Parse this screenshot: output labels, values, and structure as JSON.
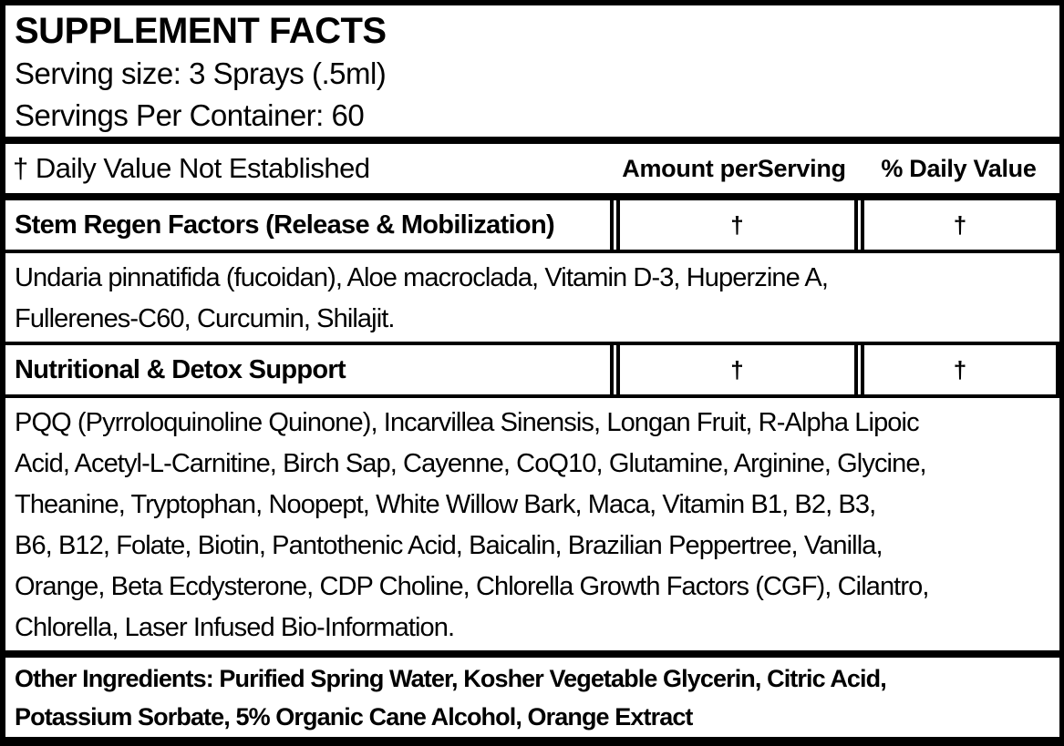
{
  "label": {
    "title": "SUPPLEMENT FACTS",
    "serving_size": "Serving size: 3 Sprays (.5ml)",
    "servings_per_container": "Servings Per Container: 60",
    "dv_note": "† Daily Value Not Established",
    "columns": {
      "amount": "Amount perServing",
      "daily_value": "% Daily Value"
    },
    "rows": [
      {
        "name": "Stem Regen Factors (Release & Mobilization)",
        "amount": "†",
        "daily_value": "†",
        "description_lines": [
          "Undaria pinnatifida (fucoidan), Aloe macroclada, Vitamin D-3, Huperzine A,",
          "Fullerenes-C60, Curcumin, Shilajit."
        ]
      },
      {
        "name": "Nutritional & Detox Support",
        "amount": "†",
        "daily_value": "†",
        "description_lines": [
          "PQQ (Pyrroloquinoline Quinone), Incarvillea Sinensis, Longan Fruit, R-Alpha Lipoic",
          "Acid, Acetyl-L-Carnitine, Birch Sap, Cayenne, CoQ10, Glutamine, Arginine, Glycine,",
          "Theanine, Tryptophan, Noopept, White Willow Bark, Maca, Vitamin B1, B2, B3,",
          "B6, B12, Folate, Biotin, Pantothenic Acid, Baicalin, Brazilian Peppertree, Vanilla,",
          "Orange, Beta Ecdysterone, CDP Choline, Chlorella Growth Factors (CGF), Cilantro,",
          "Chlorella, Laser Infused Bio-Information."
        ]
      }
    ],
    "other_ingredients_lines": [
      "Other Ingredients: Purified Spring Water, Kosher Vegetable Glycerin, Citric Acid,",
      "Potassium Sorbate, 5% Organic Cane Alcohol, Orange Extract"
    ],
    "colors": {
      "text": "#000000",
      "border": "#000000",
      "background": "#ffffff"
    }
  }
}
